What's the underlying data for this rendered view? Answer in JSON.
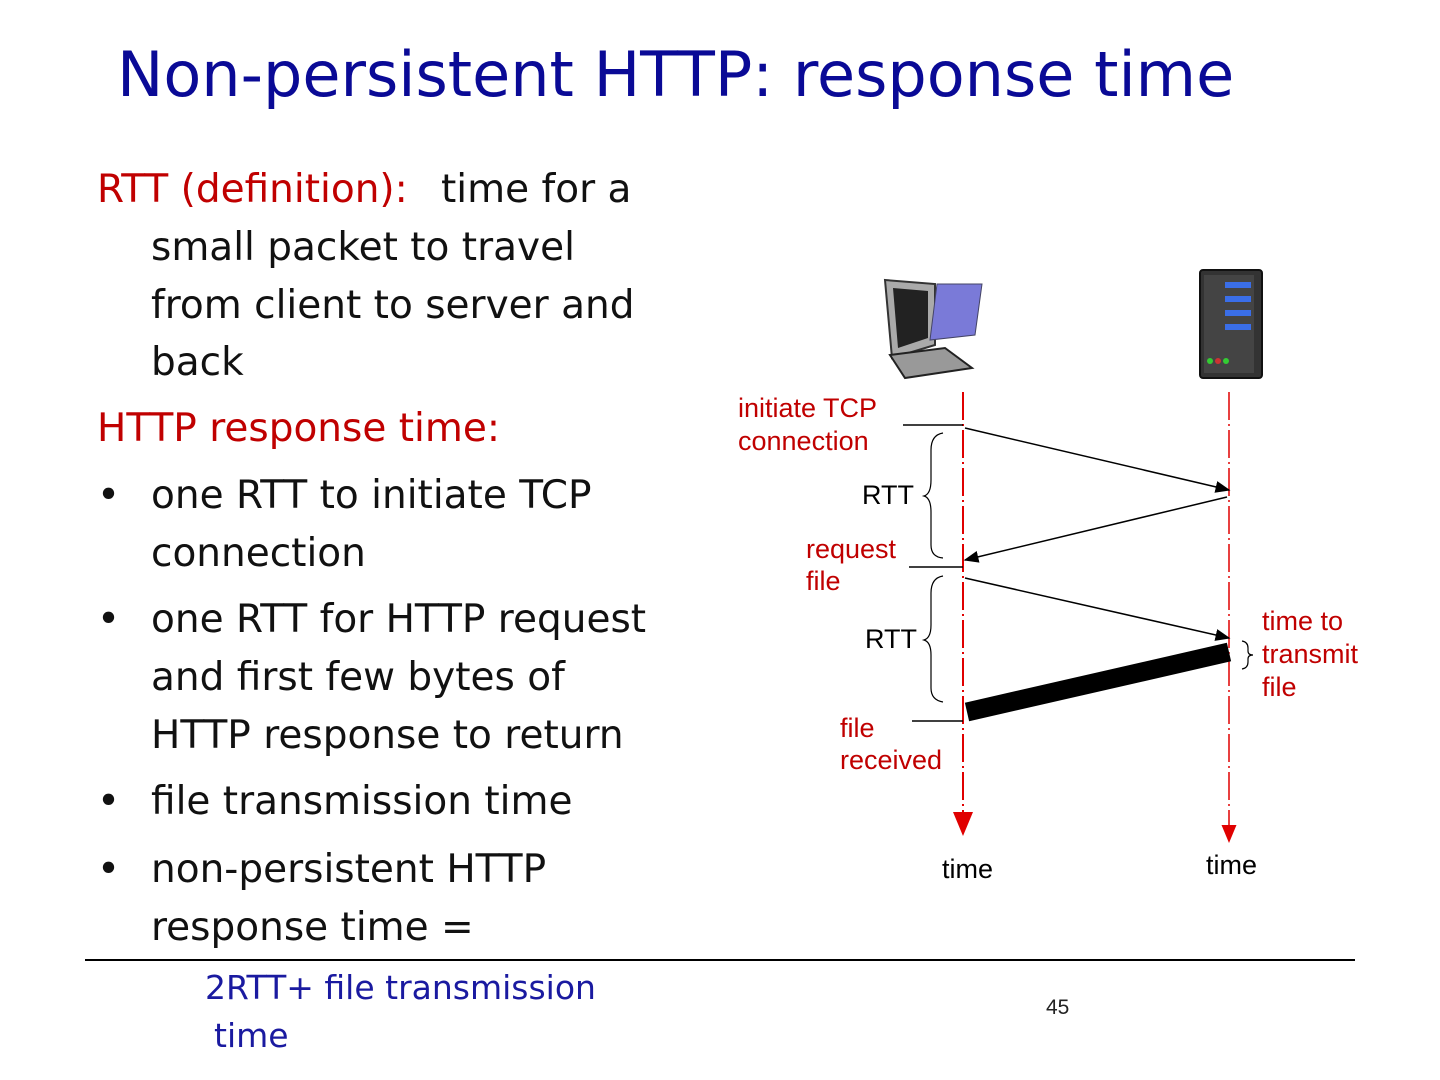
{
  "header": {
    "title": "Non-persistent HTTP: response time"
  },
  "body": {
    "definition": {
      "term": "RTT (definition):",
      "lines": [
        "time for a",
        "small packet to travel",
        "from client to server and",
        "back"
      ]
    },
    "heading": "HTTP response time:",
    "bullets": [
      {
        "lines": [
          "one RTT to initiate TCP",
          "connection"
        ]
      },
      {
        "lines": [
          "one RTT for HTTP request",
          "and first few bytes of",
          "HTTP response to return"
        ]
      },
      {
        "lines": [
          "file transmission time"
        ]
      },
      {
        "lines": [
          "non-persistent HTTP",
          "response time ="
        ]
      }
    ],
    "formula": {
      "lines": [
        "2RTT+ file transmission",
        "time"
      ]
    }
  },
  "diagram": {
    "initiate": [
      "initiate TCP",
      "connection"
    ],
    "rtt_1": "RTT",
    "request": [
      "request",
      "file"
    ],
    "rtt_2": "RTT",
    "transmit": [
      "time to",
      "transmit",
      "file"
    ],
    "received": [
      "file",
      "received"
    ],
    "client_time": "time",
    "server_time": "time"
  },
  "footer": {
    "page_number": "45"
  }
}
